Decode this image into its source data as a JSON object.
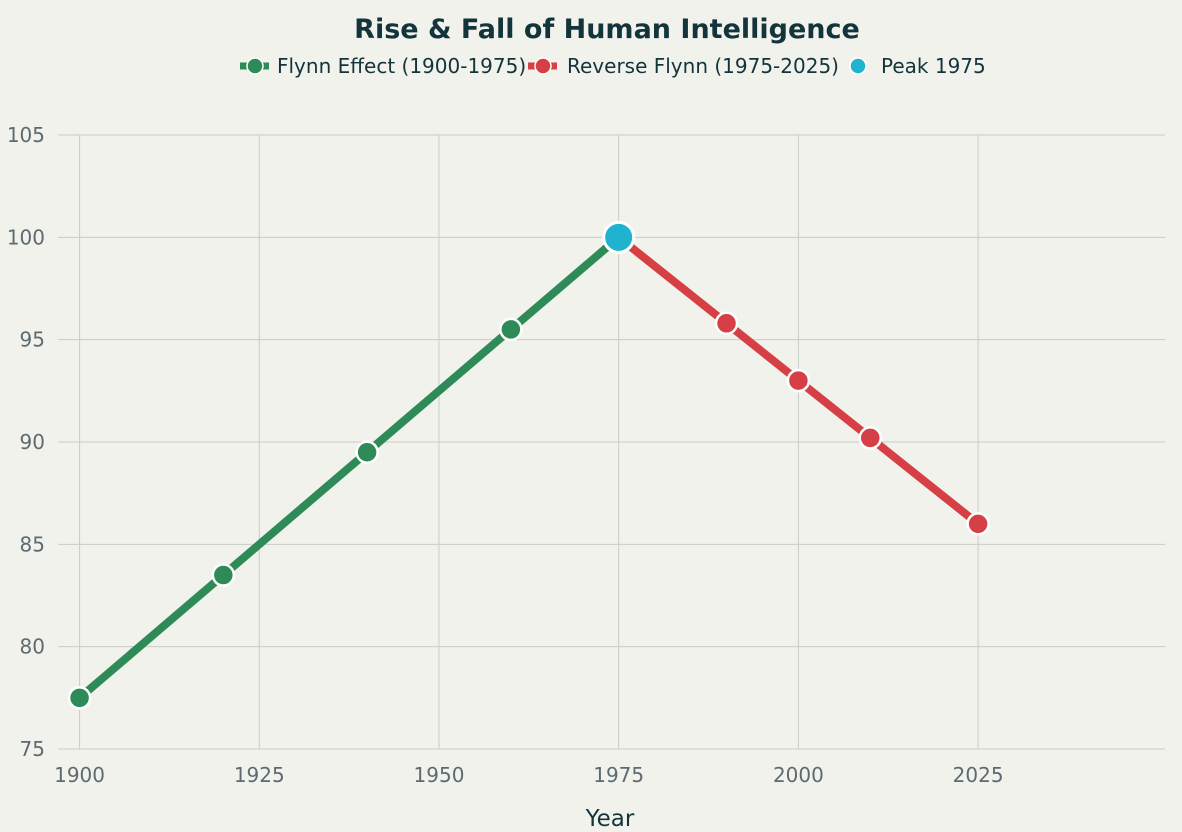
{
  "chart_data": {
    "type": "line",
    "title": "Rise & Fall of Human Intelligence",
    "xlabel": "Year",
    "ylabel": "",
    "xlim": [
      1897,
      2051
    ],
    "ylim": [
      75,
      105
    ],
    "xticks": [
      1900,
      1925,
      1950,
      1975,
      2000,
      2025
    ],
    "yticks": [
      75,
      80,
      85,
      90,
      95,
      100,
      105
    ],
    "grid": true,
    "legend_position": "top-center",
    "series": [
      {
        "name": "Flynn Effect (1900-1975)",
        "color": "#2e8a57",
        "points": [
          {
            "x": 1900,
            "y": 77.5
          },
          {
            "x": 1920,
            "y": 83.5
          },
          {
            "x": 1940,
            "y": 89.5
          },
          {
            "x": 1960,
            "y": 95.5
          },
          {
            "x": 1975,
            "y": 100
          }
        ]
      },
      {
        "name": "Reverse Flynn (1975-2025)",
        "color": "#d63f45",
        "points": [
          {
            "x": 1975,
            "y": 100
          },
          {
            "x": 1990,
            "y": 95.8
          },
          {
            "x": 2000,
            "y": 93
          },
          {
            "x": 2010,
            "y": 90.2
          },
          {
            "x": 2025,
            "y": 86
          }
        ]
      },
      {
        "name": "Peak 1975",
        "color": "#1fb3cf",
        "points": [
          {
            "x": 1975,
            "y": 100
          }
        ]
      }
    ]
  }
}
